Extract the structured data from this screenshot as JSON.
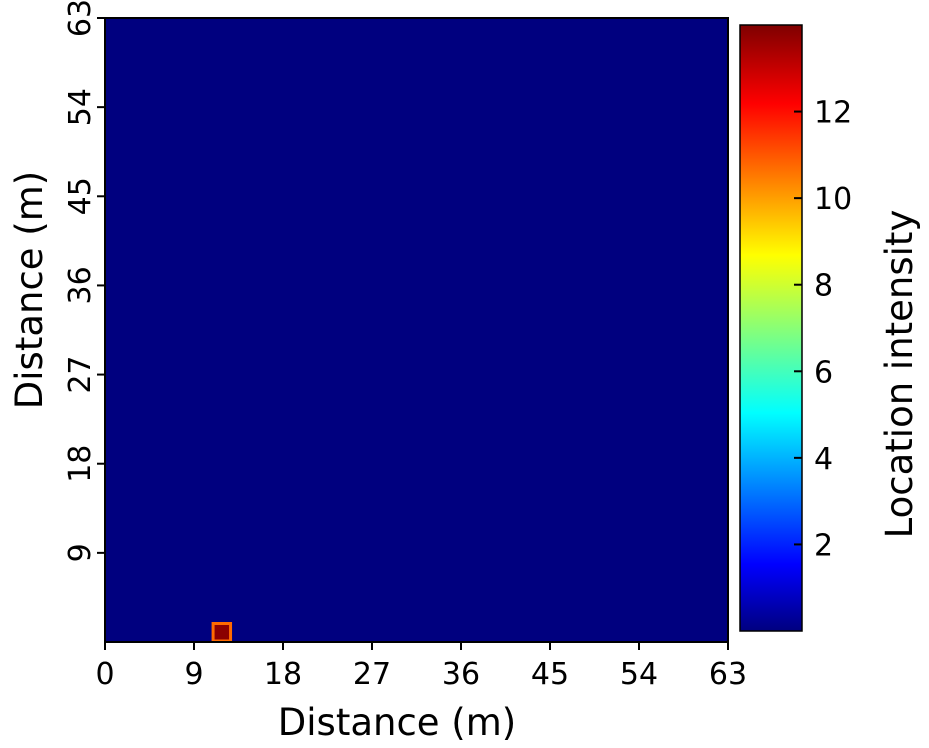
{
  "chart_data": {
    "type": "heatmap",
    "xlabel": "Distance (m)",
    "ylabel": "Distance (m)",
    "xlim": [
      0,
      63
    ],
    "ylim": [
      0,
      63
    ],
    "xticks": [
      "0",
      "9",
      "18",
      "27",
      "36",
      "45",
      "54",
      "63"
    ],
    "yticks": [
      "9",
      "18",
      "27",
      "36",
      "45",
      "54",
      "63"
    ],
    "grid": false,
    "background_value": 0,
    "hotspots": [
      {
        "x": 11,
        "y": 1,
        "value": 13.8
      }
    ],
    "colorbar": {
      "label": "Location intensity",
      "min": 0,
      "max": 14,
      "ticks": [
        "2",
        "4",
        "6",
        "8",
        "10",
        "12"
      ],
      "colormap": "jet"
    },
    "colors": {
      "background": "#00007f",
      "hotspot_core": "#8b0000",
      "hotspot_edge": "#ff6a00"
    }
  }
}
